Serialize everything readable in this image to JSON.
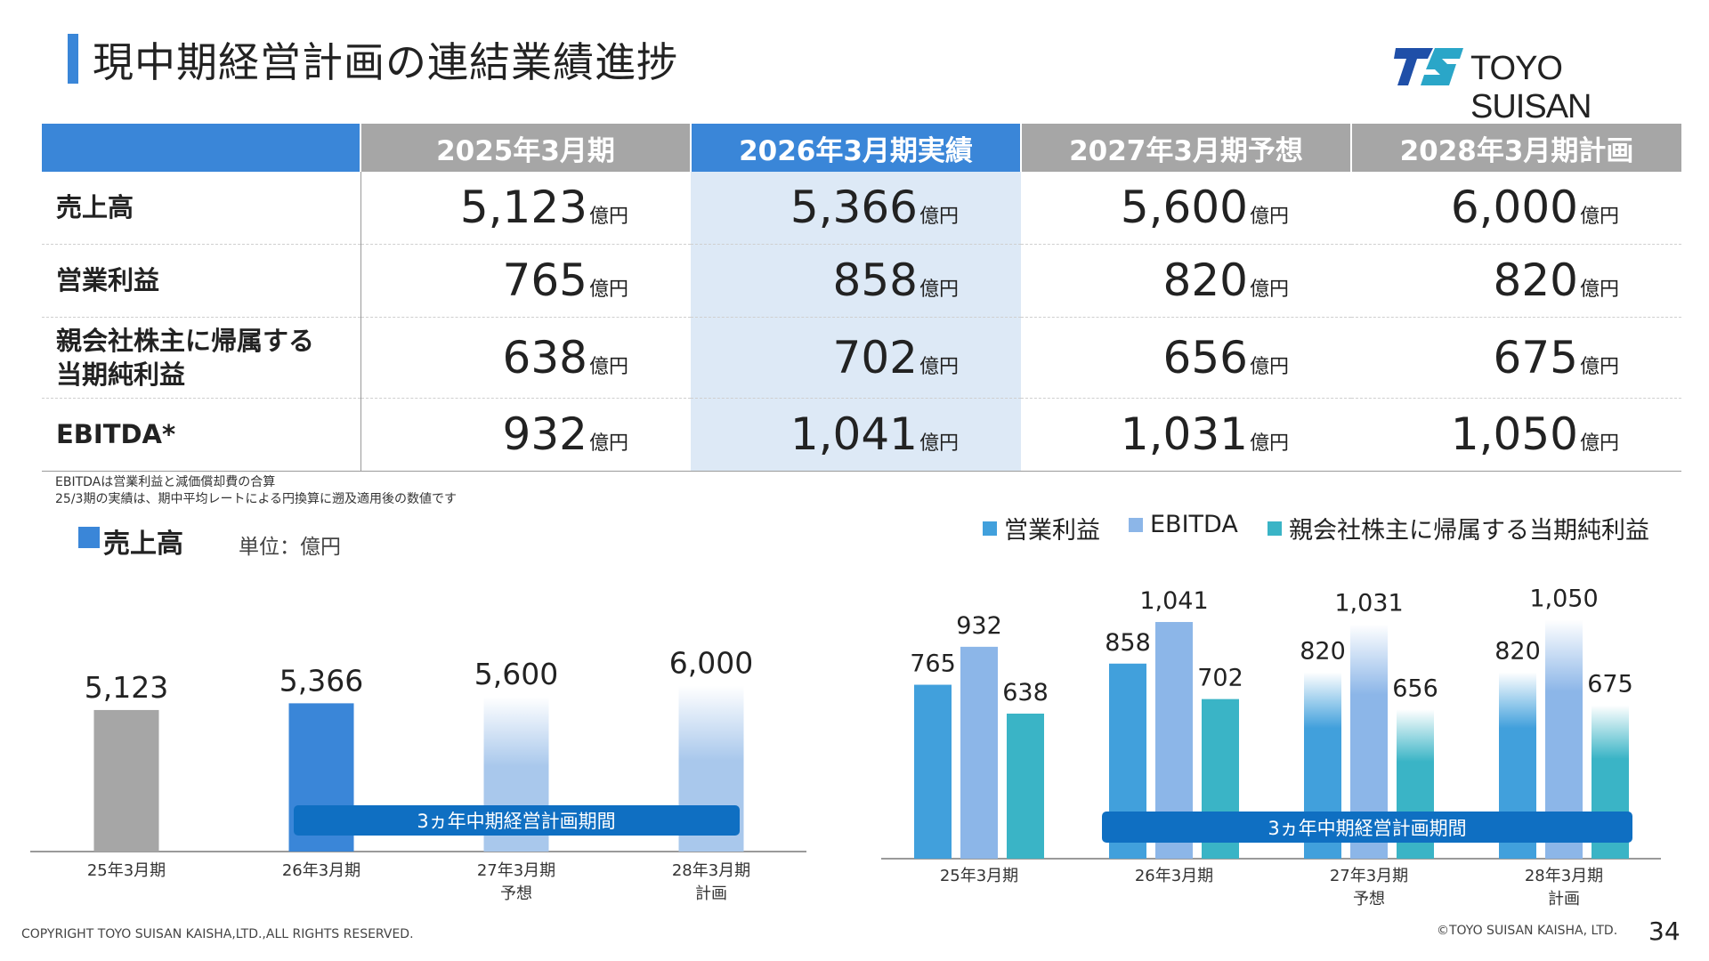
{
  "title": "現中期経営計画の連結業績進捗",
  "logo_text": "TOYO SUISAN",
  "colors": {
    "accent_blue": "#3a86d8",
    "gray_bar": "#a6a6a6",
    "light_blue": "#a9c8ec",
    "op_profit": "#41a0dc",
    "ebitda": "#8cb6e8",
    "net_profit": "#3ab4c6",
    "band": "#0f6fc2"
  },
  "table": {
    "headers": [
      "",
      "2025年3月期",
      "2026年3月期実績",
      "2027年3月期予想",
      "2028年3月期計画"
    ],
    "unit": "億円",
    "rows": [
      {
        "label": "売上高",
        "values": [
          "5,123",
          "5,366",
          "5,600",
          "6,000"
        ]
      },
      {
        "label": "営業利益",
        "values": [
          "765",
          "858",
          "820",
          "820"
        ]
      },
      {
        "label": "親会社株主に帰属する当期純利益",
        "values": [
          "638",
          "702",
          "656",
          "675"
        ]
      },
      {
        "label": "EBITDA*",
        "values": [
          "932",
          "1,041",
          "1,031",
          "1,050"
        ]
      }
    ]
  },
  "notes": [
    "EBITDAは営業利益と減価償却費の合算",
    "25/3期の実績は、期中平均レートによる円換算に遡及適用後の数値です"
  ],
  "sales_chart_title": "売上高",
  "sales_chart_unit": "単位：億円",
  "legend": [
    "営業利益",
    "EBITDA",
    "親会社株主に帰属する当期純利益"
  ],
  "band_label": "3ヵ年中期経営計画期間",
  "chart_data": [
    {
      "type": "bar",
      "title": "売上高",
      "unit": "単位：億円",
      "categories": [
        [
          "25年3月期"
        ],
        [
          "26年3月期"
        ],
        [
          "27年3月期",
          "予想"
        ],
        [
          "28年3月期",
          "計画"
        ]
      ],
      "values": [
        5123,
        5366,
        5600,
        6000
      ],
      "value_labels": [
        "5,123",
        "5,366",
        "5,600",
        "6,000"
      ],
      "bar_styles": [
        "actual-gray",
        "actual-blue",
        "forecast",
        "forecast"
      ],
      "annotation": "3ヵ年中期経営計画期間"
    },
    {
      "type": "bar",
      "categories": [
        [
          "25年3月期"
        ],
        [
          "26年3月期"
        ],
        [
          "27年3月期",
          "予想"
        ],
        [
          "28年3月期",
          "計画"
        ]
      ],
      "series": [
        {
          "name": "営業利益",
          "values": [
            765,
            858,
            820,
            820
          ],
          "labels": [
            "765",
            "858",
            "820",
            "820"
          ]
        },
        {
          "name": "EBITDA",
          "values": [
            932,
            1041,
            1031,
            1050
          ],
          "labels": [
            "932",
            "1,041",
            "1,031",
            "1,050"
          ]
        },
        {
          "name": "親会社株主に帰属する当期純利益",
          "values": [
            638,
            702,
            656,
            675
          ],
          "labels": [
            "638",
            "702",
            "656",
            "675"
          ]
        }
      ],
      "forecast_from_index": 2,
      "legend_position": "top",
      "annotation": "3ヵ年中期経営計画期間"
    }
  ],
  "footer": {
    "copyright": "COPYRIGHT TOYO SUISAN KAISHA,LTD.,ALL RIGHTS RESERVED.",
    "company": "©TOYO SUISAN KAISHA, LTD.",
    "page": "34"
  }
}
